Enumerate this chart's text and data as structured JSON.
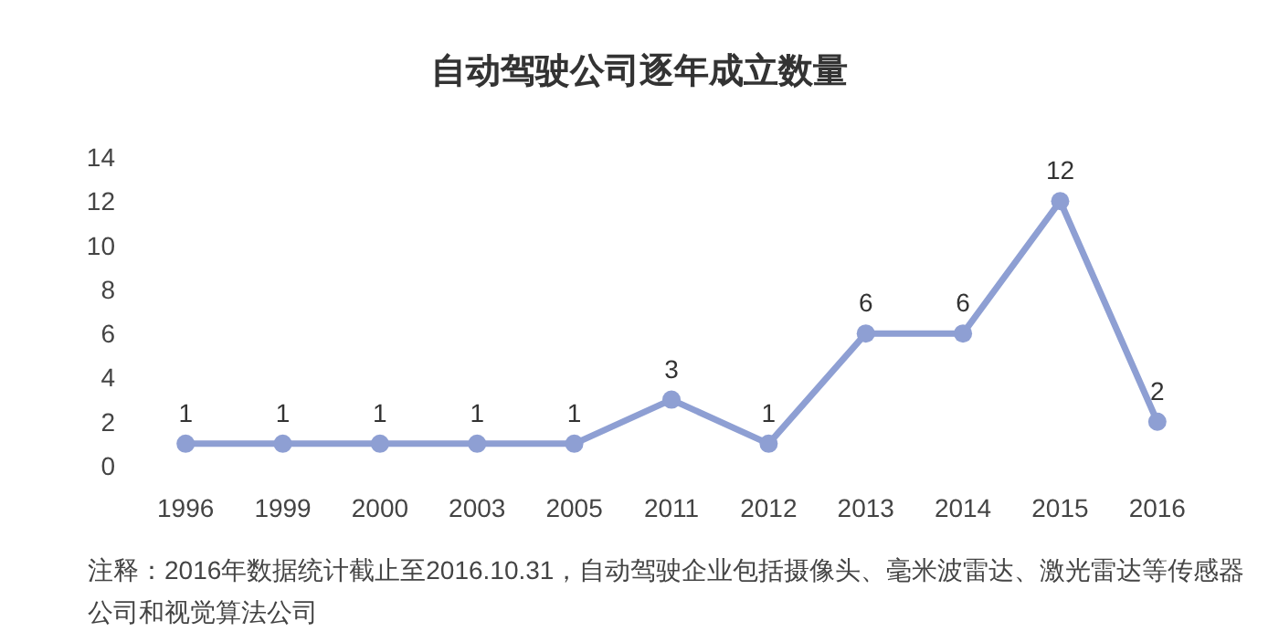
{
  "chart_data": {
    "type": "line",
    "title": "自动驾驶公司逐年成立数量",
    "categories": [
      "1996",
      "1999",
      "2000",
      "2003",
      "2005",
      "2011",
      "2012",
      "2013",
      "2014",
      "2015",
      "2016"
    ],
    "values": [
      1,
      1,
      1,
      1,
      1,
      3,
      1,
      6,
      6,
      12,
      2
    ],
    "color": "#8e9fd3",
    "marker": "circle",
    "line_style": "solid",
    "data_labels": true,
    "ylim": [
      0,
      14
    ],
    "yticks": [
      0,
      2,
      4,
      6,
      8,
      10,
      12,
      14
    ],
    "annotations": [
      "注释：2016年数据统计截止至2016.10.31，自动驾驶企业包括摄像头、毫米波雷达、激光雷达等传感器公司和视觉算法公司"
    ]
  }
}
